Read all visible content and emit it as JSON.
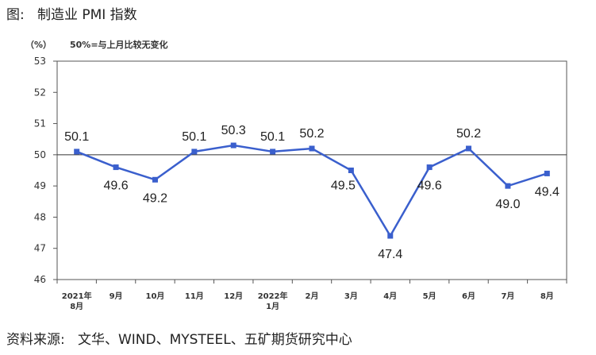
{
  "figure": {
    "title": "图:   制造业 PMI 指数",
    "source": "资料来源:   文华、WIND、MYSTEEL、五矿期货研究中心"
  },
  "chart_data": {
    "type": "line",
    "unit_label": "（%）",
    "reference_note": "50%=与上月比较无变化",
    "reference_value": 50,
    "ylim": [
      46,
      53
    ],
    "yticks": [
      46,
      47,
      48,
      49,
      50,
      51,
      52,
      53
    ],
    "grid": false,
    "categories": [
      [
        "2021年",
        "8月"
      ],
      [
        "9月"
      ],
      [
        "10月"
      ],
      [
        "11月"
      ],
      [
        "12月"
      ],
      [
        "2022年",
        "1月"
      ],
      [
        "2月"
      ],
      [
        "3月"
      ],
      [
        "4月"
      ],
      [
        "5月"
      ],
      [
        "6月"
      ],
      [
        "7月"
      ],
      [
        "8月"
      ]
    ],
    "series": [
      {
        "color": "#3a5fcd",
        "values": [
          50.1,
          49.6,
          49.2,
          50.1,
          50.3,
          50.1,
          50.2,
          49.5,
          47.4,
          49.6,
          50.2,
          49.0,
          49.4
        ],
        "labels": [
          "50.1",
          "49.6",
          "49.2",
          "50.1",
          "50.3",
          "50.1",
          "50.2",
          "49.5",
          "47.4",
          "49.6",
          "50.2",
          "49.0",
          "49.4"
        ],
        "label_positions": [
          "above",
          "below",
          "below",
          "above",
          "above",
          "above",
          "above",
          "below-left",
          "below",
          "below",
          "above",
          "below",
          "below"
        ]
      }
    ]
  }
}
